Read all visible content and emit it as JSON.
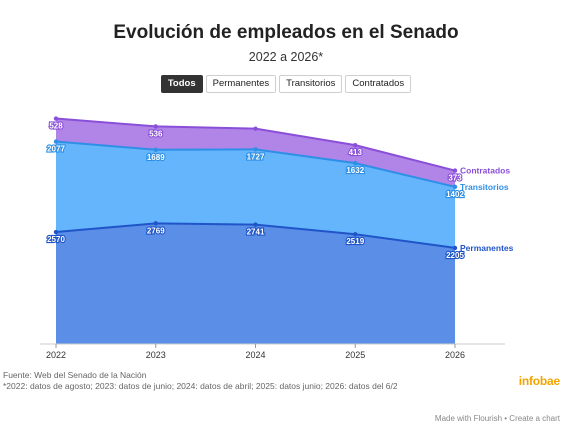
{
  "header": {
    "title": "Evolución de empleados en el Senado",
    "subtitle": "2022 a 2026*"
  },
  "filters": {
    "items": [
      "Todos",
      "Permanentes",
      "Transitorios",
      "Contratados"
    ],
    "active": "Todos"
  },
  "footer": {
    "source": "Fuente: Web del Senado de la Nación",
    "note": "*2022: datos de agosto; 2023: datos de junio; 2024: datos de abril; 2025: datos junio; 2026: datos del 6/2",
    "brand": "infobae",
    "made_with": "Made with Flourish • Create a chart"
  },
  "colors": {
    "permanentes_fill": "#5b8ee6",
    "permanentes_line": "#1f55c9",
    "transitorios_fill": "#64b5fb",
    "transitorios_line": "#2e8fe6",
    "contratados_fill": "#b184e8",
    "contratados_line": "#8a4fd8"
  },
  "chart_data": {
    "type": "area",
    "stacked": true,
    "x": [
      "2022",
      "2023",
      "2024",
      "2025",
      "2026"
    ],
    "series": [
      {
        "name": "Permanentes",
        "values": [
          2570,
          2769,
          2741,
          2519,
          2205
        ]
      },
      {
        "name": "Transitorios",
        "values": [
          2077,
          1689,
          1727,
          1632,
          1402
        ]
      },
      {
        "name": "Contratados",
        "values": [
          528,
          536,
          null,
          413,
          373
        ]
      }
    ],
    "ylim": [
      0,
      5600
    ],
    "grid": false,
    "legend": "labels at line ends (right)"
  }
}
